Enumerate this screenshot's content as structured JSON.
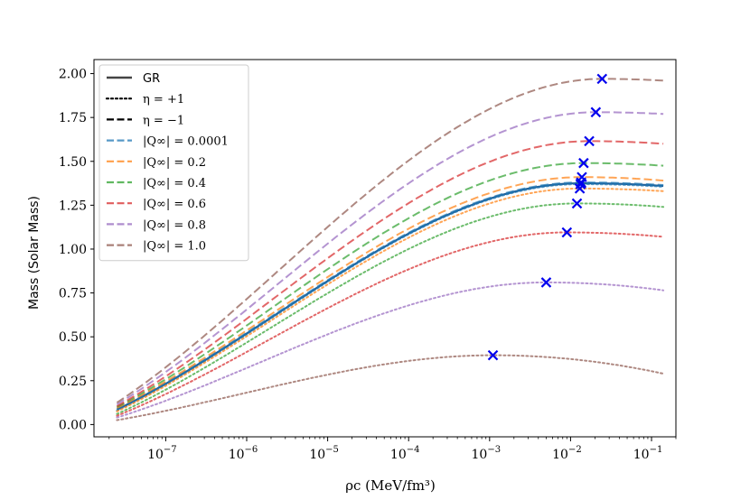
{
  "chart_data": {
    "type": "line",
    "title": "",
    "xlabel": "ρc (MeV/fm³)",
    "ylabel": "Mass (Solar Mass)",
    "xscale": "log",
    "xlim": [
      1.3e-08,
      0.2
    ],
    "ylim": [
      -0.07,
      2.08
    ],
    "grid": false,
    "legend_placement": "top-left",
    "x_ticks": [
      {
        "value": 1e-07,
        "label": "10",
        "exp": "−7"
      },
      {
        "value": 1e-06,
        "label": "10",
        "exp": "−6"
      },
      {
        "value": 1e-05,
        "label": "10",
        "exp": "−5"
      },
      {
        "value": 0.0001,
        "label": "10",
        "exp": "−4"
      },
      {
        "value": 0.001,
        "label": "10",
        "exp": "−3"
      },
      {
        "value": 0.01,
        "label": "10",
        "exp": "−2"
      },
      {
        "value": 0.1,
        "label": "10",
        "exp": "−1"
      }
    ],
    "y_ticks": [
      "0.00",
      "0.25",
      "0.50",
      "0.75",
      "1.00",
      "1.25",
      "1.50",
      "1.75",
      "2.00"
    ],
    "legend": [
      {
        "text": "GR",
        "style": "solid",
        "color": "#444444"
      },
      {
        "text": "η = +1",
        "style": "dotted",
        "color": "#000000"
      },
      {
        "text": "η = −1",
        "style": "dashed",
        "color": "#000000"
      },
      {
        "text": "|Q∞| = 0.0001",
        "style": "dashed",
        "color": "#1f77b4"
      },
      {
        "text": "|Q∞| = 0.2",
        "style": "dashed",
        "color": "#ff7f0e"
      },
      {
        "text": "|Q∞| = 0.4",
        "style": "dashed",
        "color": "#2ca02c"
      },
      {
        "text": "|Q∞| = 0.6",
        "style": "dashed",
        "color": "#d62728"
      },
      {
        "text": "|Q∞| = 0.8",
        "style": "dashed",
        "color": "#9467bd"
      },
      {
        "text": "|Q∞| = 1.0",
        "style": "dashed",
        "color": "#8c564b"
      }
    ],
    "series": [
      {
        "name": "GR",
        "style": "solid",
        "color": "#1f5f9a",
        "opacity": 1.0,
        "x_start": 2.5e-08,
        "y_start": 0.085,
        "x_max": 0.0135,
        "y_max": 1.375,
        "y_end": 1.36
      },
      {
        "name": "|Q∞| = 0.0001 (η = −1)",
        "style": "dashed",
        "color": "#1f77b4",
        "opacity": 0.7,
        "x_start": 2.5e-08,
        "y_start": 0.09,
        "x_max": 0.0135,
        "y_max": 1.38,
        "y_end": 1.365
      },
      {
        "name": "|Q∞| = 0.0001 (η = +1)",
        "style": "dotted",
        "color": "#1f77b4",
        "opacity": 0.7,
        "x_start": 2.5e-08,
        "y_start": 0.08,
        "x_max": 0.0133,
        "y_max": 1.37,
        "y_end": 1.355
      },
      {
        "name": "|Q∞| = 0.2 (η = −1)",
        "style": "dashed",
        "color": "#ff7f0e",
        "opacity": 0.7,
        "x_start": 2.5e-08,
        "y_start": 0.095,
        "x_max": 0.0138,
        "y_max": 1.41,
        "y_end": 1.39
      },
      {
        "name": "|Q∞| = 0.2 (η = +1)",
        "style": "dotted",
        "color": "#ff7f0e",
        "opacity": 0.7,
        "x_start": 2.5e-08,
        "y_start": 0.075,
        "x_max": 0.013,
        "y_max": 1.345,
        "y_end": 1.33
      },
      {
        "name": "|Q∞| = 0.4 (η = −1)",
        "style": "dashed",
        "color": "#2ca02c",
        "opacity": 0.7,
        "x_start": 2.5e-08,
        "y_start": 0.1,
        "x_max": 0.0145,
        "y_max": 1.49,
        "y_end": 1.475
      },
      {
        "name": "|Q∞| = 0.4 (η = +1)",
        "style": "dotted",
        "color": "#2ca02c",
        "opacity": 0.7,
        "x_start": 2.5e-08,
        "y_start": 0.06,
        "x_max": 0.012,
        "y_max": 1.26,
        "y_end": 1.24
      },
      {
        "name": "|Q∞| = 0.6 (η = −1)",
        "style": "dashed",
        "color": "#d62728",
        "opacity": 0.7,
        "x_start": 2.5e-08,
        "y_start": 0.105,
        "x_max": 0.017,
        "y_max": 1.615,
        "y_end": 1.6
      },
      {
        "name": "|Q∞| = 0.6 (η = +1)",
        "style": "dotted",
        "color": "#d62728",
        "opacity": 0.7,
        "x_start": 2.5e-08,
        "y_start": 0.05,
        "x_max": 0.009,
        "y_max": 1.095,
        "y_end": 1.07
      },
      {
        "name": "|Q∞| = 0.8 (η = −1)",
        "style": "dashed",
        "color": "#9467bd",
        "opacity": 0.7,
        "x_start": 2.5e-08,
        "y_start": 0.115,
        "x_max": 0.0205,
        "y_max": 1.78,
        "y_end": 1.77
      },
      {
        "name": "|Q∞| = 0.8 (η = +1)",
        "style": "dotted",
        "color": "#9467bd",
        "opacity": 0.7,
        "x_start": 2.5e-08,
        "y_start": 0.04,
        "x_max": 0.005,
        "y_max": 0.81,
        "y_end": 0.765
      },
      {
        "name": "|Q∞| = 1.0 (η = −1)",
        "style": "dashed",
        "color": "#8c564b",
        "opacity": 0.7,
        "x_start": 2.5e-08,
        "y_start": 0.125,
        "x_max": 0.0245,
        "y_max": 1.97,
        "y_end": 1.96
      },
      {
        "name": "|Q∞| = 1.0 (η = +1)",
        "style": "dotted",
        "color": "#8c564b",
        "opacity": 0.7,
        "x_start": 2.5e-08,
        "y_start": 0.025,
        "x_max": 0.0011,
        "y_max": 0.395,
        "y_end": 0.29
      }
    ],
    "maximum_markers": {
      "marker": "x",
      "color": "#0000ee",
      "points": [
        [
          0.0245,
          1.97
        ],
        [
          0.0205,
          1.78
        ],
        [
          0.017,
          1.615
        ],
        [
          0.0145,
          1.49
        ],
        [
          0.0138,
          1.41
        ],
        [
          0.0135,
          1.38
        ],
        [
          0.0135,
          1.375
        ],
        [
          0.0133,
          1.37
        ],
        [
          0.013,
          1.345
        ],
        [
          0.012,
          1.26
        ],
        [
          0.009,
          1.095
        ],
        [
          0.005,
          0.81
        ],
        [
          0.0011,
          0.395
        ]
      ]
    },
    "x_end": 0.14
  }
}
